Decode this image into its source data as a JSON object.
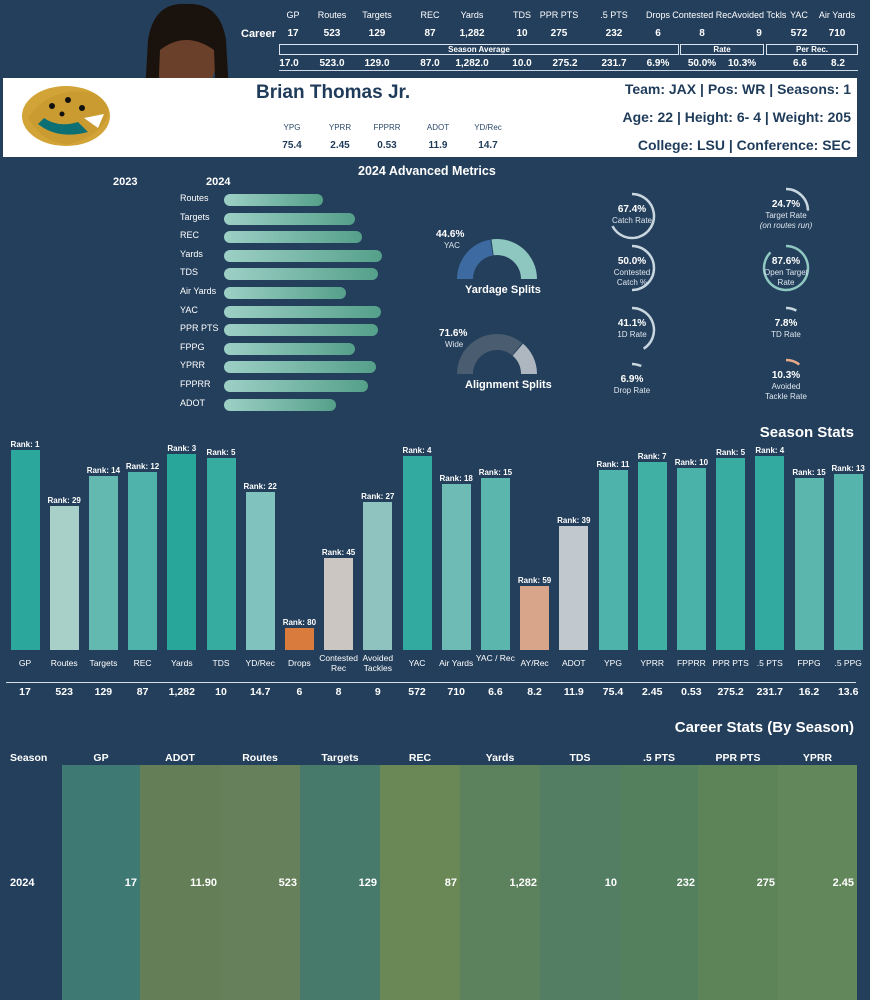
{
  "career": {
    "headers": [
      "GP",
      "Routes",
      "Targets",
      "REC",
      "Yards",
      "TDS",
      "PPR PTS",
      ".5 PTS",
      "Drops",
      "Contested Rec",
      "Avoided Tckls",
      "YAC",
      "Air Yards"
    ],
    "row_label": "Career",
    "values": [
      "17",
      "523",
      "129",
      "87",
      "1,282",
      "10",
      "275",
      "232",
      "6",
      "8",
      "9",
      "572",
      "710"
    ],
    "avg_values": [
      "17.0",
      "523.0",
      "129.0",
      "87.0",
      "1,282.0",
      "10.0",
      "275.2",
      "231.7",
      "6.9%",
      "50.0%",
      "10.3%",
      "6.6",
      "8.2"
    ],
    "band_season_avg": "Season Average",
    "band_rate": "Rate",
    "band_per_rec": "Per Rec."
  },
  "player": {
    "name": "Brian Thomas Jr.",
    "line1": "Team: JAX  | Pos: WR | Seasons: 1",
    "line2": "Age: 22 | Height: 6- 4 | Weight: 205",
    "line3": "College: LSU  | Conference: SEC",
    "mini_headers": [
      "YPG",
      "YPRR",
      "FPPRR",
      "ADOT",
      "YD/Rec"
    ],
    "mini_values": [
      "75.4",
      "2.45",
      "0.53",
      "11.9",
      "14.7"
    ]
  },
  "advanced": {
    "title": "2024 Advanced Metrics",
    "year_a": "2023",
    "year_b": "2024",
    "metrics": [
      {
        "label": "Routes",
        "value": 0.62
      },
      {
        "label": "Targets",
        "value": 0.82
      },
      {
        "label": "REC",
        "value": 0.86
      },
      {
        "label": "Yards",
        "value": 0.99
      },
      {
        "label": "TDS",
        "value": 0.96
      },
      {
        "label": "Air Yards",
        "value": 0.76
      },
      {
        "label": "YAC",
        "value": 0.98
      },
      {
        "label": "PPR PTS",
        "value": 0.96
      },
      {
        "label": "FPPG",
        "value": 0.82
      },
      {
        "label": "YPRR",
        "value": 0.95
      },
      {
        "label": "FPPRR",
        "value": 0.9
      },
      {
        "label": "ADOT",
        "value": 0.7
      }
    ],
    "yardage_split": {
      "pct": "44.6%",
      "sub": "YAC",
      "title": "Yardage Splits",
      "value": 44.6
    },
    "alignment_split": {
      "pct": "71.6%",
      "sub": "Wide",
      "title": "Alignment Splits",
      "value": 71.6
    },
    "circles": [
      {
        "pct": "67.4%",
        "label": "Catch Rate",
        "sub": "",
        "value": 67.4,
        "color": "#c8d6e0"
      },
      {
        "pct": "24.7%",
        "label": "Target Rate",
        "sub": "(on routes run)",
        "value": 24.7,
        "color": "#c8d6e0"
      },
      {
        "pct": "50.0%",
        "label": "Contested",
        "sub": "Catch %",
        "value": 50.0,
        "color": "#c8d6e0"
      },
      {
        "pct": "87.6%",
        "label": "Open Target",
        "sub": "Rate",
        "value": 87.6,
        "color": "#8fc7c1"
      },
      {
        "pct": "41.1%",
        "label": "1D Rate",
        "sub": "",
        "value": 41.1,
        "color": "#c8d6e0"
      },
      {
        "pct": "7.8%",
        "label": "TD Rate",
        "sub": "",
        "value": 7.8,
        "color": "#c8d6e0"
      },
      {
        "pct": "6.9%",
        "label": "Drop Rate",
        "sub": "",
        "value": 6.9,
        "color": "#c8d6e0"
      },
      {
        "pct": "10.3%",
        "label": "Avoided",
        "sub": "Tackle Rate",
        "value": 10.3,
        "color": "#e8a98a"
      }
    ]
  },
  "chart_data": {
    "type": "bar",
    "title": "Season Stats",
    "categories": [
      "GP",
      "Routes",
      "Targets",
      "REC",
      "Yards",
      "TDS",
      "YD/Rec",
      "Drops",
      "Contested Rec",
      "Avoided Tackles",
      "YAC",
      "Air Yards",
      "YAC / Rec",
      "AY/Rec",
      "ADOT",
      "YPG",
      "YPRR",
      "FPPRR",
      "PPR PTS",
      ".5 PTS",
      "FPPG",
      ".5 PPG"
    ],
    "ranks": [
      1,
      29,
      14,
      12,
      3,
      5,
      22,
      80,
      45,
      27,
      4,
      18,
      15,
      59,
      39,
      11,
      7,
      10,
      5,
      4,
      15,
      13
    ],
    "values": [
      "17",
      "523",
      "129",
      "87",
      "1,282",
      "10",
      "14.7",
      "6",
      "8",
      "9",
      "572",
      "710",
      "6.6",
      "8.2",
      "11.9",
      "75.4",
      "2.45",
      "0.53",
      "275.2",
      "231.7",
      "16.2",
      "13.6"
    ],
    "colors": [
      "#2ba89b",
      "#a9cfc9",
      "#63b8b0",
      "#4fb3ab",
      "#27a699",
      "#36aba0",
      "#80c2bd",
      "#d97b3c",
      "#cbc6c1",
      "#8ec3c0",
      "#33aa9f",
      "#6ebbb6",
      "#5bb6ae",
      "#d8a58a",
      "#c2c9ce",
      "#4eb3aa",
      "#40afa4",
      "#4ab2a9",
      "#38aca1",
      "#33aa9f",
      "#5bb6ae",
      "#55b5ad"
    ],
    "rank_prefix": "Rank: "
  },
  "career_table": {
    "title": "Career Stats (By Season)",
    "headers": [
      "Season",
      "GP",
      "ADOT",
      "Routes",
      "Targets",
      "REC",
      "Yards",
      "TDS",
      ".5 PTS",
      "PPR PTS",
      "YPRR"
    ],
    "row": [
      "2024",
      "17",
      "11.90",
      "523",
      "129",
      "87",
      "1,282",
      "10",
      "232",
      "275",
      "2.45"
    ],
    "colors": [
      "#3e7974",
      "#647f57",
      "#65805a",
      "#477a6a",
      "#6a8856",
      "#5c815d",
      "#547e63",
      "#55805d",
      "#5d8459",
      "#62875a"
    ]
  }
}
